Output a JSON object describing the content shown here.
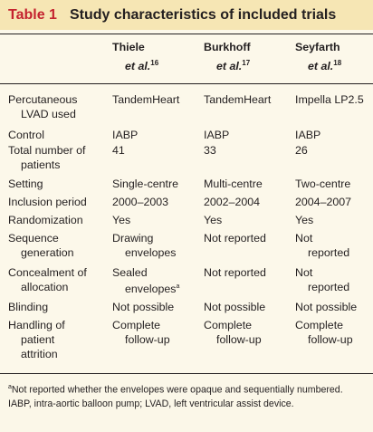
{
  "title": {
    "label": "Table 1",
    "text": "Study characteristics of included trials"
  },
  "columns": [
    {
      "name": "Thiele",
      "etal": "et al.",
      "ref": "16"
    },
    {
      "name": "Burkhoff",
      "etal": "et al.",
      "ref": "17"
    },
    {
      "name": "Seyfarth",
      "etal": "et al.",
      "ref": "18"
    }
  ],
  "rows": [
    {
      "label": [
        "Percutaneous",
        "LVAD used"
      ],
      "cells": [
        [
          "TandemHeart"
        ],
        [
          "TandemHeart"
        ],
        [
          "Impella LP2.5"
        ]
      ]
    },
    {
      "label": [
        "Control"
      ],
      "cells": [
        [
          "IABP"
        ],
        [
          "IABP"
        ],
        [
          "IABP"
        ]
      ]
    },
    {
      "label": [
        "Total number of",
        "patients"
      ],
      "cells": [
        [
          "41"
        ],
        [
          "33"
        ],
        [
          "26"
        ]
      ]
    },
    {
      "label": [
        "Setting"
      ],
      "cells": [
        [
          "Single-centre"
        ],
        [
          "Multi-centre"
        ],
        [
          "Two-centre"
        ]
      ]
    },
    {
      "label": [
        "Inclusion period"
      ],
      "cells": [
        [
          "2000–2003"
        ],
        [
          "2002–2004"
        ],
        [
          "2004–2007"
        ]
      ]
    },
    {
      "label": [
        "Randomization"
      ],
      "cells": [
        [
          "Yes"
        ],
        [
          "Yes"
        ],
        [
          "Yes"
        ]
      ]
    },
    {
      "label": [
        "Sequence",
        "generation"
      ],
      "cells": [
        [
          "Drawing",
          "envelopes"
        ],
        [
          "Not reported"
        ],
        [
          "Not",
          "reported"
        ]
      ]
    },
    {
      "label": [
        "Concealment of",
        "allocation"
      ],
      "cells": [
        [
          "Sealed",
          "envelopes"
        ],
        [
          "Not reported"
        ],
        [
          "Not",
          "reported"
        ]
      ]
    },
    {
      "label": [
        "Blinding"
      ],
      "cells": [
        [
          "Not possible"
        ],
        [
          "Not possible"
        ],
        [
          "Not possible"
        ]
      ]
    },
    {
      "label": [
        "Handling of",
        "patient",
        "attrition"
      ],
      "cells": [
        [
          "Complete",
          "follow-up"
        ],
        [
          "Complete",
          "follow-up"
        ],
        [
          "Complete",
          "follow-up"
        ]
      ]
    }
  ],
  "footnote_marker": "a",
  "footnotes": {
    "line1": "Not reported whether the envelopes were opaque and sequentially numbered.",
    "line2": "IABP, intra-aortic balloon pump; LVAD, left ventricular assist device."
  }
}
